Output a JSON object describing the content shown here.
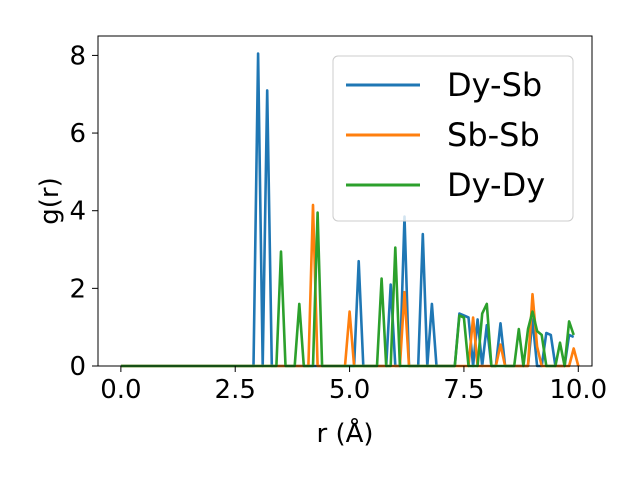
{
  "chart_data": {
    "type": "line",
    "xlabel": "r (Å)",
    "ylabel": "g(r)",
    "xlim": [
      -0.5,
      10.3
    ],
    "ylim": [
      0,
      8.5
    ],
    "xticks": [
      0.0,
      2.5,
      5.0,
      7.5,
      10.0
    ],
    "xtick_labels": [
      "0.0",
      "2.5",
      "5.0",
      "7.5",
      "10.0"
    ],
    "yticks": [
      0,
      2,
      4,
      6,
      8
    ],
    "ytick_labels": [
      "0",
      "2",
      "4",
      "6",
      "8"
    ],
    "grid": false,
    "legend_position": "top-right",
    "series": [
      {
        "name": "Dy-Sb",
        "color": "#1f77b4",
        "points": [
          [
            0.0,
            0
          ],
          [
            2.9,
            0
          ],
          [
            3.0,
            8.05
          ],
          [
            3.1,
            0
          ],
          [
            3.2,
            7.1
          ],
          [
            3.3,
            0
          ],
          [
            5.1,
            0
          ],
          [
            5.2,
            2.7
          ],
          [
            5.3,
            0
          ],
          [
            5.8,
            0
          ],
          [
            5.9,
            2.1
          ],
          [
            6.0,
            0
          ],
          [
            6.1,
            0
          ],
          [
            6.2,
            3.85
          ],
          [
            6.3,
            0
          ],
          [
            6.5,
            0
          ],
          [
            6.6,
            3.4
          ],
          [
            6.7,
            0
          ],
          [
            6.8,
            1.6
          ],
          [
            6.9,
            0
          ],
          [
            7.3,
            0
          ],
          [
            7.4,
            1.35
          ],
          [
            7.5,
            1.3
          ],
          [
            7.6,
            1.25
          ],
          [
            7.7,
            0
          ],
          [
            7.8,
            1.2
          ],
          [
            7.9,
            0
          ],
          [
            8.0,
            1.05
          ],
          [
            8.1,
            0
          ],
          [
            8.2,
            0
          ],
          [
            8.3,
            1.1
          ],
          [
            8.4,
            0
          ],
          [
            8.9,
            0
          ],
          [
            9.0,
            1.2
          ],
          [
            9.1,
            0
          ],
          [
            9.2,
            0
          ],
          [
            9.3,
            0.85
          ],
          [
            9.4,
            0.8
          ],
          [
            9.5,
            0
          ],
          [
            9.7,
            0
          ],
          [
            9.8,
            0.8
          ],
          [
            9.9,
            0.75
          ]
        ]
      },
      {
        "name": "Sb-Sb",
        "color": "#ff7f0e",
        "points": [
          [
            0.0,
            0
          ],
          [
            4.1,
            0
          ],
          [
            4.2,
            4.15
          ],
          [
            4.3,
            0
          ],
          [
            4.9,
            0
          ],
          [
            5.0,
            1.4
          ],
          [
            5.1,
            0
          ],
          [
            6.1,
            0
          ],
          [
            6.2,
            1.9
          ],
          [
            6.3,
            0
          ],
          [
            7.6,
            0
          ],
          [
            7.7,
            1.25
          ],
          [
            7.8,
            0
          ],
          [
            8.2,
            0
          ],
          [
            8.3,
            0.55
          ],
          [
            8.4,
            0
          ],
          [
            8.9,
            0
          ],
          [
            9.0,
            1.85
          ],
          [
            9.1,
            0.5
          ],
          [
            9.2,
            0
          ],
          [
            9.8,
            0
          ],
          [
            9.9,
            0.45
          ],
          [
            10.0,
            0
          ]
        ]
      },
      {
        "name": "Dy-Dy",
        "color": "#2ca02c",
        "points": [
          [
            0.0,
            0
          ],
          [
            3.4,
            0
          ],
          [
            3.5,
            2.95
          ],
          [
            3.6,
            0
          ],
          [
            3.8,
            0
          ],
          [
            3.9,
            1.6
          ],
          [
            4.0,
            0
          ],
          [
            4.2,
            0
          ],
          [
            4.3,
            3.95
          ],
          [
            4.4,
            0
          ],
          [
            5.6,
            0
          ],
          [
            5.7,
            2.25
          ],
          [
            5.8,
            0
          ],
          [
            5.9,
            0
          ],
          [
            6.0,
            3.05
          ],
          [
            6.1,
            0
          ],
          [
            7.3,
            0
          ],
          [
            7.4,
            1.3
          ],
          [
            7.5,
            1.25
          ],
          [
            7.6,
            0
          ],
          [
            7.8,
            0
          ],
          [
            7.9,
            1.35
          ],
          [
            8.0,
            1.6
          ],
          [
            8.1,
            0
          ],
          [
            8.6,
            0
          ],
          [
            8.7,
            0.95
          ],
          [
            8.8,
            0
          ],
          [
            8.9,
            0.95
          ],
          [
            9.0,
            1.4
          ],
          [
            9.1,
            0.9
          ],
          [
            9.2,
            0.8
          ],
          [
            9.3,
            0
          ],
          [
            9.5,
            0
          ],
          [
            9.6,
            0.6
          ],
          [
            9.7,
            0
          ],
          [
            9.8,
            1.15
          ],
          [
            9.9,
            0.8
          ]
        ]
      }
    ]
  }
}
